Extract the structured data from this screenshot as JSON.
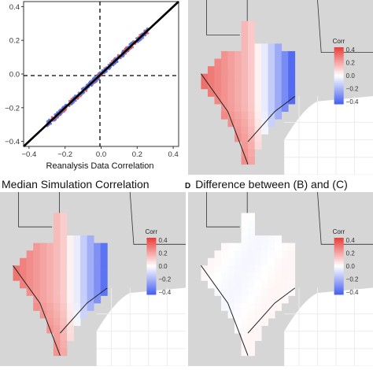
{
  "panels": {
    "scatter": {
      "xlabel": "Reanalysis Data Correlation"
    },
    "map_b": {},
    "map_c": {
      "title": "Median Simulation Correlation"
    },
    "map_d": {
      "letter": "D",
      "title": "Difference between (B) and (C)"
    }
  },
  "legend": {
    "title": "Corr",
    "ticks": [
      "0.4",
      "0.2",
      "0.0",
      "−0.2",
      "−0.4"
    ]
  },
  "colors": {
    "land_outside": "#d6d6d6",
    "ocean": "#ffffff",
    "grid": "#ececec",
    "positive": "#e8413c",
    "negative": "#4a63f0",
    "identity_line": "#000000",
    "points": "#5b6fd6",
    "points_alt": "#e0525a"
  },
  "chart_data": [
    {
      "type": "scatter",
      "xlabel": "Reanalysis Data Correlation",
      "ylabel": "",
      "xlim": [
        -0.43,
        0.43
      ],
      "ylim": [
        -0.43,
        0.43
      ],
      "x_ticks": [
        "−0.4",
        "−0.2",
        "0.0",
        "0.2",
        "0.4"
      ],
      "y_ticks": [
        "−0.4",
        "−0.2",
        "0.0",
        "0.2",
        "0.4"
      ],
      "reference_lines": [
        "y = x (solid)",
        "x = 0 (dashed)",
        "y = 0 (dashed)"
      ],
      "point_range": {
        "x": [
          -0.3,
          0.26
        ],
        "y": [
          -0.3,
          0.26
        ]
      },
      "grid": false
    },
    {
      "type": "heatmap",
      "panel": "B",
      "legend_title": "Corr",
      "scale": [
        -0.4,
        0.4
      ],
      "pattern": "positive (red) in west and south along coast, negative (blue) in east"
    },
    {
      "type": "heatmap",
      "panel": "C",
      "title": "Median Simulation Correlation",
      "legend_title": "Corr",
      "scale": [
        -0.4,
        0.4
      ],
      "pattern": "positive (red) in west and south along coast, negative (blue) in east"
    },
    {
      "type": "heatmap",
      "panel": "D",
      "title": "Difference between (B) and (C)",
      "legend_title": "Corr",
      "scale": [
        -0.4,
        0.4
      ],
      "pattern": "near zero everywhere"
    }
  ]
}
